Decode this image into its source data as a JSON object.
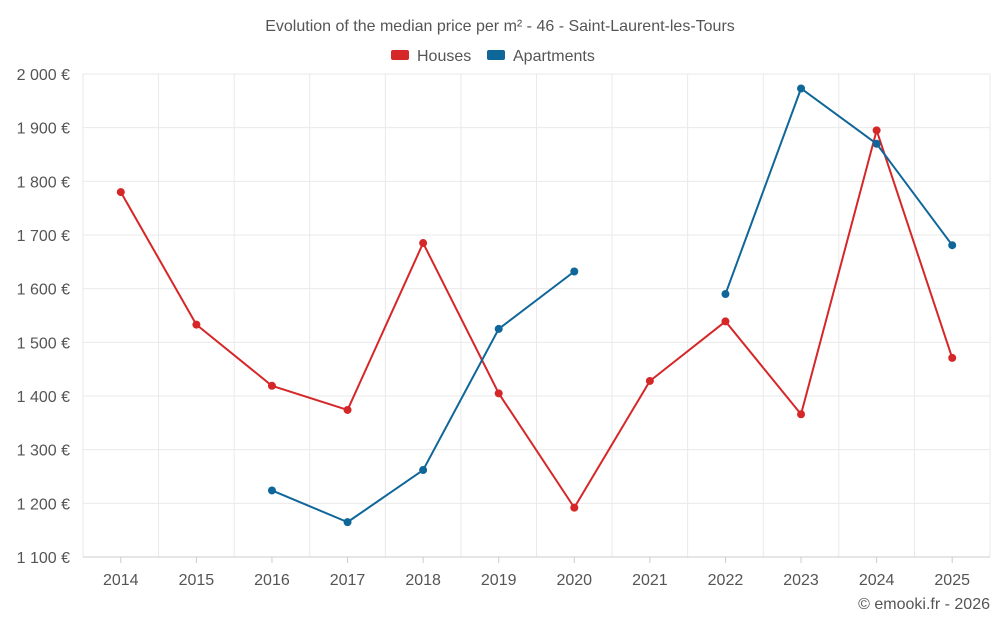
{
  "chart_data": {
    "type": "line",
    "title": "Evolution of the median price per m² - 46 - Saint-Laurent-les-Tours",
    "xlabel": "",
    "ylabel": "",
    "categories": [
      "2014",
      "2015",
      "2016",
      "2017",
      "2018",
      "2019",
      "2020",
      "2021",
      "2022",
      "2023",
      "2024",
      "2025"
    ],
    "ylim": [
      1100,
      2000
    ],
    "yticks": [
      1100,
      1200,
      1300,
      1400,
      1500,
      1600,
      1700,
      1800,
      1900,
      2000
    ],
    "ytick_labels": [
      "1 100 €",
      "1 200 €",
      "1 300 €",
      "1 400 €",
      "1 500 €",
      "1 600 €",
      "1 700 €",
      "1 800 €",
      "1 900 €",
      "2 000 €"
    ],
    "grid": true,
    "legend_position": "top-center",
    "series": [
      {
        "name": "Houses",
        "color": "#d62728",
        "values": [
          1780,
          1533,
          1419,
          1374,
          1685,
          1405,
          1192,
          1428,
          1539,
          1366,
          1895,
          1471
        ]
      },
      {
        "name": "Apartments",
        "color": "#0f6698",
        "values": [
          null,
          null,
          1224,
          1165,
          1262,
          1525,
          1632,
          null,
          1590,
          1973,
          1870,
          1681
        ]
      }
    ]
  },
  "credit": "© emooki.fr - 2026"
}
